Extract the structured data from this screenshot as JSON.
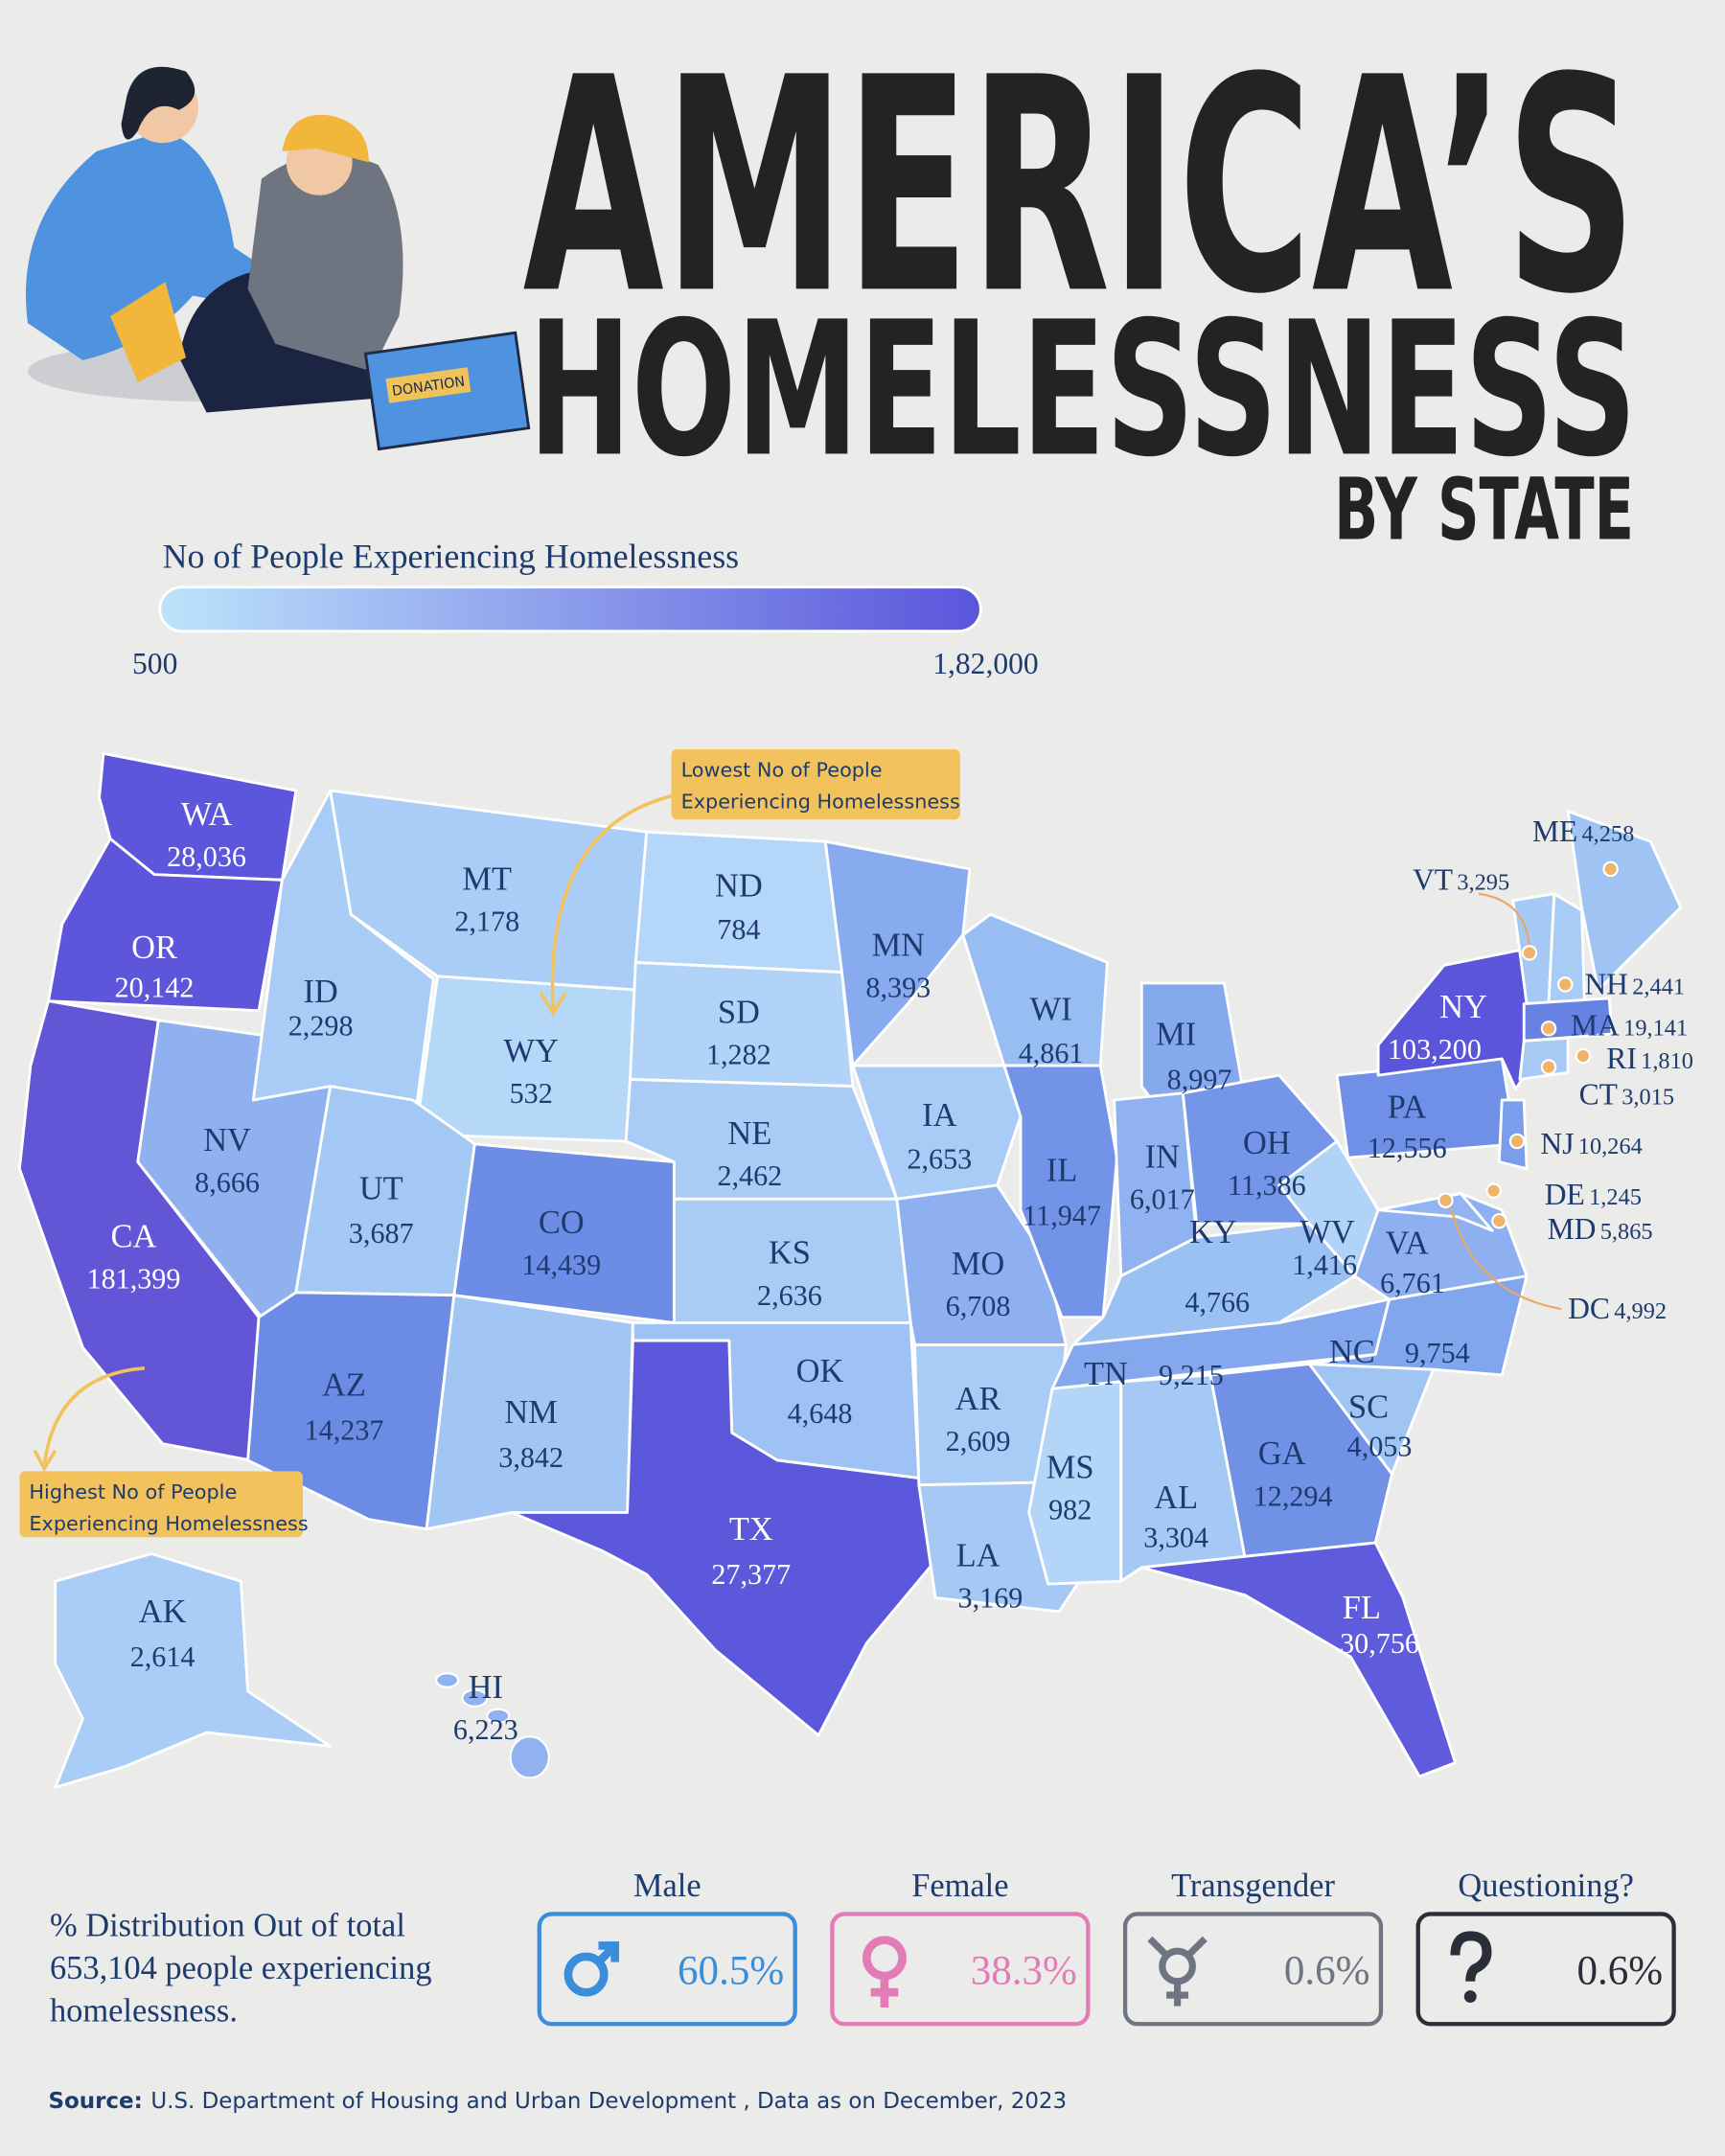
{
  "header": {
    "title_lines": [
      "AMERICA’S",
      "HOMELESSNESS"
    ],
    "subtitle": "BY STATE",
    "illustration_label": "DONATION"
  },
  "legend": {
    "title": "No of People Experiencing Homelessness",
    "min_label": "500",
    "max_label": "1,82,000",
    "colors": [
      "#bde3fb",
      "#5a55dc"
    ]
  },
  "annotations": [
    {
      "lines": [
        "Lowest No of People",
        "Experiencing Homelessness"
      ],
      "color": "#f2c25c"
    },
    {
      "lines": [
        "Highest No of People",
        "Experiencing Homelessness"
      ],
      "color": "#f2c25c"
    }
  ],
  "states": [
    {
      "abbr": "WA",
      "value": "28,036",
      "color": "#5b56dc",
      "label_color": "#ffffff"
    },
    {
      "abbr": "OR",
      "value": "20,142",
      "color": "#5d55da",
      "label_color": "#ffffff"
    },
    {
      "abbr": "CA",
      "value": "181,399",
      "color": "#6255d6",
      "label_color": "#ffffff"
    },
    {
      "abbr": "NV",
      "value": "8,666",
      "color": "#8fb1f0",
      "label_color": "#1d3b6e"
    },
    {
      "abbr": "ID",
      "value": "2,298",
      "color": "#a8ccf5",
      "label_color": "#1d3b6e"
    },
    {
      "abbr": "MT",
      "value": "2,178",
      "color": "#a9cdf6",
      "label_color": "#1d3b6e"
    },
    {
      "abbr": "WY",
      "value": "532",
      "color": "#b6d8f8",
      "label_color": "#1d3b6e"
    },
    {
      "abbr": "UT",
      "value": "3,687",
      "color": "#a4c8f4",
      "label_color": "#1d3b6e"
    },
    {
      "abbr": "CO",
      "value": "14,439",
      "color": "#6d8ce6",
      "label_color": "#1d3b6e"
    },
    {
      "abbr": "AZ",
      "value": "14,237",
      "color": "#6c8be5",
      "label_color": "#1d3b6e"
    },
    {
      "abbr": "NM",
      "value": "3,842",
      "color": "#a2c6f4",
      "label_color": "#1d3b6e"
    },
    {
      "abbr": "ND",
      "value": "784",
      "color": "#b4d6f8",
      "label_color": "#1d3b6e"
    },
    {
      "abbr": "SD",
      "value": "1,282",
      "color": "#b0d3f7",
      "label_color": "#1d3b6e"
    },
    {
      "abbr": "NE",
      "value": "2,462",
      "color": "#a8ccf5",
      "label_color": "#1d3b6e"
    },
    {
      "abbr": "KS",
      "value": "2,636",
      "color": "#a8ccf5",
      "label_color": "#1d3b6e"
    },
    {
      "abbr": "OK",
      "value": "4,648",
      "color": "#9dc2f3",
      "label_color": "#1d3b6e"
    },
    {
      "abbr": "TX",
      "value": "27,377",
      "color": "#5c58dc",
      "label_color": "#ffffff"
    },
    {
      "abbr": "MN",
      "value": "8,393",
      "color": "#88abef",
      "label_color": "#1d3b6e"
    },
    {
      "abbr": "IA",
      "value": "2,653",
      "color": "#a8ccf5",
      "label_color": "#1d3b6e"
    },
    {
      "abbr": "MO",
      "value": "6,708",
      "color": "#8eb0f0",
      "label_color": "#1d3b6e"
    },
    {
      "abbr": "AR",
      "value": "2,609",
      "color": "#a8ccf5",
      "label_color": "#1d3b6e"
    },
    {
      "abbr": "LA",
      "value": "3,169",
      "color": "#a5c9f4",
      "label_color": "#1d3b6e"
    },
    {
      "abbr": "WI",
      "value": "4,861",
      "color": "#98bdf2",
      "label_color": "#1d3b6e"
    },
    {
      "abbr": "IL",
      "value": "11,947",
      "color": "#7393e8",
      "label_color": "#1d3b6e"
    },
    {
      "abbr": "MI",
      "value": "8,997",
      "color": "#86a9ee",
      "label_color": "#1d3b6e"
    },
    {
      "abbr": "IN",
      "value": "6,017",
      "color": "#90b2f0",
      "label_color": "#1d3b6e"
    },
    {
      "abbr": "OH",
      "value": "11,386",
      "color": "#7595e8",
      "label_color": "#1d3b6e"
    },
    {
      "abbr": "KY",
      "value": "4,766",
      "color": "#9bc0f2",
      "label_color": "#1d3b6e"
    },
    {
      "abbr": "TN",
      "value": "9,215",
      "color": "#84a7ee",
      "label_color": "#1d3b6e"
    },
    {
      "abbr": "MS",
      "value": "982",
      "color": "#b2d5f8",
      "label_color": "#1d3b6e"
    },
    {
      "abbr": "AL",
      "value": "3,304",
      "color": "#a5c9f4",
      "label_color": "#1d3b6e"
    },
    {
      "abbr": "GA",
      "value": "12,294",
      "color": "#7191e7",
      "label_color": "#1d3b6e"
    },
    {
      "abbr": "FL",
      "value": "30,756",
      "color": "#5e5bdd",
      "label_color": "#ffffff"
    },
    {
      "abbr": "SC",
      "value": "4,053",
      "color": "#a0c5f3",
      "label_color": "#1d3b6e"
    },
    {
      "abbr": "NC",
      "value": "9,754",
      "color": "#82a6ee",
      "label_color": "#1d3b6e"
    },
    {
      "abbr": "VA",
      "value": "6,761",
      "color": "#8eb0f0",
      "label_color": "#1d3b6e"
    },
    {
      "abbr": "WV",
      "value": "1,416",
      "color": "#b0d3f7",
      "label_color": "#1d3b6e"
    },
    {
      "abbr": "PA",
      "value": "12,556",
      "color": "#7090e7",
      "label_color": "#1d3b6e"
    },
    {
      "abbr": "NY",
      "value": "103,200",
      "color": "#5b55dc",
      "label_color": "#ffffff"
    },
    {
      "abbr": "ME",
      "value": "4,258",
      "color": "#9fc4f3",
      "label_color": "#1d3b6e"
    },
    {
      "abbr": "VT",
      "value": "3,295",
      "color": "#a5c9f4",
      "label_color": "#1d3b6e"
    },
    {
      "abbr": "NH",
      "value": "2,441",
      "color": "#a8ccf5",
      "label_color": "#1d3b6e"
    },
    {
      "abbr": "MA",
      "value": "19,141",
      "color": "#6683e4",
      "label_color": "#1d3b6e"
    },
    {
      "abbr": "RI",
      "value": "1,810",
      "color": "#aed1f6",
      "label_color": "#1d3b6e"
    },
    {
      "abbr": "CT",
      "value": "3,015",
      "color": "#a6caf4",
      "label_color": "#1d3b6e"
    },
    {
      "abbr": "NJ",
      "value": "10,264",
      "color": "#7b9deb",
      "label_color": "#1d3b6e"
    },
    {
      "abbr": "DE",
      "value": "1,245",
      "color": "#afd2f7",
      "label_color": "#1d3b6e"
    },
    {
      "abbr": "MD",
      "value": "5,865",
      "color": "#92b4f1",
      "label_color": "#1d3b6e"
    },
    {
      "abbr": "DC",
      "value": "4,992",
      "color": "#98bdf2",
      "label_color": "#1d3b6e"
    },
    {
      "abbr": "AK",
      "value": "2,614",
      "color": "#a9cdf6",
      "label_color": "#1d3b6e"
    },
    {
      "abbr": "HI",
      "value": "6,223",
      "color": "#90b2f0",
      "label_color": "#1d3b6e"
    }
  ],
  "distribution": {
    "lines": [
      "% Distribution Out of total",
      "653,104 people experiencing",
      "homelessness."
    ],
    "groups": [
      {
        "name": "Male",
        "value": "60.5%",
        "color": "#3a8ddb"
      },
      {
        "name": "Female",
        "value": "38.3%",
        "color": "#e27cb6"
      },
      {
        "name": "Transgender",
        "value": "0.6%",
        "color": "#6e7581"
      },
      {
        "name": "Questioning?",
        "value": "0.6%",
        "color": "#2a2e38"
      }
    ]
  },
  "source": {
    "label": "Source:",
    "text": "U.S. Department of Housing and Urban Development , Data as on December, 2023"
  }
}
